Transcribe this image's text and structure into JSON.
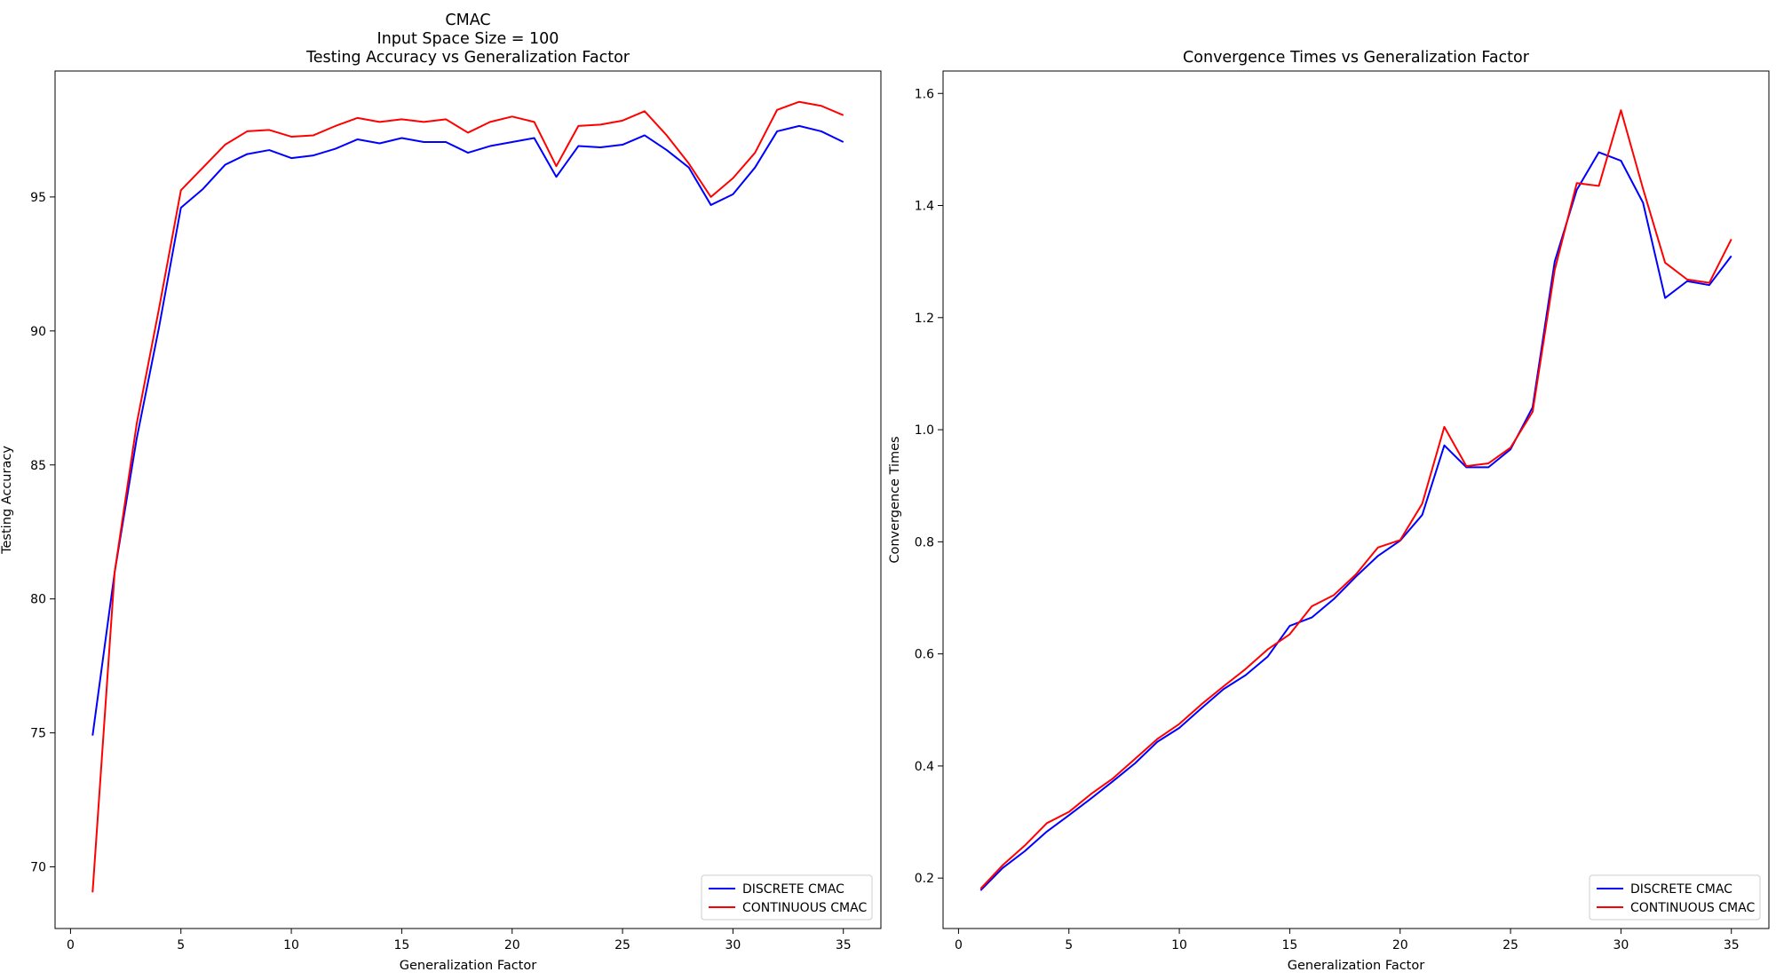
{
  "chart_data": [
    {
      "type": "line",
      "title_lines": [
        "CMAC",
        "Input Space Size = 100",
        "Testing Accuracy vs Generalization Factor"
      ],
      "xlabel": "Generalization Factor",
      "ylabel": "Testing Accuracy",
      "xlim": [
        -0.7,
        36.7
      ],
      "ylim": [
        67.7,
        99.7
      ],
      "xticks": [
        0,
        5,
        10,
        15,
        20,
        25,
        30,
        35
      ],
      "yticks": [
        70,
        75,
        80,
        85,
        90,
        95
      ],
      "legend_position": "lower-right",
      "x": [
        1,
        2,
        3,
        4,
        5,
        6,
        7,
        8,
        9,
        10,
        11,
        12,
        13,
        14,
        15,
        16,
        17,
        18,
        19,
        20,
        21,
        22,
        23,
        24,
        25,
        26,
        27,
        28,
        29,
        30,
        31,
        32,
        33,
        34,
        35
      ],
      "series": [
        {
          "name": "DISCRETE CMAC",
          "color": "#0000ff",
          "values": [
            74.9,
            81.0,
            86.0,
            90.1,
            94.6,
            95.3,
            96.2,
            96.6,
            96.75,
            96.45,
            96.55,
            96.8,
            97.15,
            97.0,
            97.2,
            97.05,
            97.05,
            96.65,
            96.9,
            97.05,
            97.2,
            95.75,
            96.9,
            96.85,
            96.95,
            97.3,
            96.75,
            96.1,
            94.7,
            95.1,
            96.1,
            97.45,
            97.65,
            97.45,
            97.05
          ]
        },
        {
          "name": "CONTINUOUS CMAC",
          "color": "#ff0000",
          "values": [
            69.05,
            81.0,
            86.55,
            90.8,
            95.25,
            96.1,
            96.95,
            97.45,
            97.5,
            97.25,
            97.3,
            97.65,
            97.95,
            97.8,
            97.9,
            97.8,
            97.9,
            97.4,
            97.8,
            98.0,
            97.8,
            96.15,
            97.65,
            97.7,
            97.85,
            98.2,
            97.3,
            96.25,
            95.0,
            95.7,
            96.65,
            98.25,
            98.55,
            98.4,
            98.05
          ]
        }
      ]
    },
    {
      "type": "line",
      "title_lines": [
        "Convergence Times vs Generalization Factor"
      ],
      "xlabel": "Generalization Factor",
      "ylabel": "Convergence Times",
      "xlim": [
        -0.7,
        36.7
      ],
      "ylim": [
        0.11,
        1.64
      ],
      "xticks": [
        0,
        5,
        10,
        15,
        20,
        25,
        30,
        35
      ],
      "yticks": [
        0.2,
        0.4,
        0.6,
        0.8,
        1.0,
        1.2,
        1.4,
        1.6
      ],
      "legend_position": "lower-right",
      "x": [
        1,
        2,
        3,
        4,
        5,
        6,
        7,
        8,
        9,
        10,
        11,
        12,
        13,
        14,
        15,
        16,
        17,
        18,
        19,
        20,
        21,
        22,
        23,
        24,
        25,
        26,
        27,
        28,
        29,
        30,
        31,
        32,
        33,
        34,
        35
      ],
      "series": [
        {
          "name": "DISCRETE CMAC",
          "color": "#0000ff",
          "values": [
            0.178,
            0.218,
            0.248,
            0.283,
            0.312,
            0.342,
            0.373,
            0.405,
            0.443,
            0.468,
            0.503,
            0.537,
            0.562,
            0.595,
            0.65,
            0.665,
            0.698,
            0.738,
            0.775,
            0.802,
            0.848,
            0.972,
            0.933,
            0.933,
            0.965,
            1.04,
            1.3,
            1.428,
            1.495,
            1.48,
            1.405,
            1.235,
            1.265,
            1.258,
            1.31
          ]
        },
        {
          "name": "CONTINUOUS CMAC",
          "color": "#ff0000",
          "values": [
            0.181,
            0.223,
            0.258,
            0.298,
            0.318,
            0.35,
            0.378,
            0.413,
            0.448,
            0.475,
            0.51,
            0.542,
            0.573,
            0.608,
            0.635,
            0.685,
            0.705,
            0.742,
            0.79,
            0.803,
            0.868,
            1.005,
            0.935,
            0.94,
            0.968,
            1.032,
            1.285,
            1.44,
            1.435,
            1.57,
            1.43,
            1.298,
            1.268,
            1.262,
            1.34
          ]
        }
      ]
    }
  ]
}
